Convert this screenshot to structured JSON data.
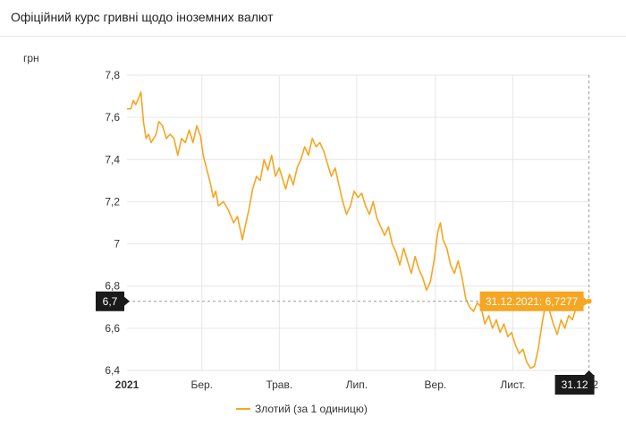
{
  "header": {
    "title": "Офіційний курс гривні щодо іноземних валют"
  },
  "chart_data": {
    "type": "line",
    "ylabel": "грн",
    "ylim": [
      6.4,
      7.8
    ],
    "yticks": [
      {
        "v": 7.8,
        "label": "7,8"
      },
      {
        "v": 7.6,
        "label": "7,6"
      },
      {
        "v": 7.4,
        "label": "7,4"
      },
      {
        "v": 7.2,
        "label": "7,2"
      },
      {
        "v": 7.0,
        "label": "7"
      },
      {
        "v": 6.8,
        "label": "6,8"
      },
      {
        "v": 6.6,
        "label": "6,6"
      },
      {
        "v": 6.4,
        "label": "6,4"
      }
    ],
    "xlim": [
      "2021-01-01",
      "2022-01-01"
    ],
    "xticks": [
      {
        "date": "2021-01-01",
        "label": "2021",
        "bold": true
      },
      {
        "date": "2021-03-01",
        "label": "Бер."
      },
      {
        "date": "2021-05-01",
        "label": "Трав."
      },
      {
        "date": "2021-07-01",
        "label": "Лип."
      },
      {
        "date": "2021-09-01",
        "label": "Вер."
      },
      {
        "date": "2021-11-01",
        "label": "Лист."
      },
      {
        "date": "2022-01-01",
        "label": "2"
      }
    ],
    "grid": true,
    "legend_position": "bottom-center",
    "crosshair": {
      "x_date": "2021-12-31",
      "x_label": "31.12",
      "y_value": 6.7277,
      "y_label": "6,7",
      "tooltip": "31.12.2021: 6,7277"
    },
    "colors": {
      "line": "#f5a623",
      "tooltip_bg": "#f5a623",
      "badge_bg": "#1a1a1a",
      "grid": "#e6e6e6"
    },
    "series": [
      {
        "name": "Злотий (за 1 одиницю)",
        "points": [
          [
            "2021-01-01",
            7.64
          ],
          [
            "2021-01-04",
            7.64
          ],
          [
            "2021-01-06",
            7.68
          ],
          [
            "2021-01-08",
            7.66
          ],
          [
            "2021-01-10",
            7.69
          ],
          [
            "2021-01-12",
            7.72
          ],
          [
            "2021-01-14",
            7.58
          ],
          [
            "2021-01-16",
            7.5
          ],
          [
            "2021-01-18",
            7.52
          ],
          [
            "2021-01-20",
            7.48
          ],
          [
            "2021-01-24",
            7.52
          ],
          [
            "2021-01-26",
            7.58
          ],
          [
            "2021-01-29",
            7.56
          ],
          [
            "2021-02-01",
            7.5
          ],
          [
            "2021-02-04",
            7.52
          ],
          [
            "2021-02-07",
            7.5
          ],
          [
            "2021-02-10",
            7.42
          ],
          [
            "2021-02-13",
            7.5
          ],
          [
            "2021-02-16",
            7.48
          ],
          [
            "2021-02-19",
            7.54
          ],
          [
            "2021-02-22",
            7.48
          ],
          [
            "2021-02-25",
            7.56
          ],
          [
            "2021-02-28",
            7.51
          ],
          [
            "2021-03-02",
            7.42
          ],
          [
            "2021-03-05",
            7.35
          ],
          [
            "2021-03-08",
            7.28
          ],
          [
            "2021-03-10",
            7.22
          ],
          [
            "2021-03-12",
            7.25
          ],
          [
            "2021-03-14",
            7.18
          ],
          [
            "2021-03-18",
            7.2
          ],
          [
            "2021-03-22",
            7.16
          ],
          [
            "2021-03-26",
            7.1
          ],
          [
            "2021-03-29",
            7.13
          ],
          [
            "2021-04-02",
            7.02
          ],
          [
            "2021-04-04",
            7.08
          ],
          [
            "2021-04-07",
            7.16
          ],
          [
            "2021-04-10",
            7.26
          ],
          [
            "2021-04-13",
            7.32
          ],
          [
            "2021-04-16",
            7.3
          ],
          [
            "2021-04-19",
            7.4
          ],
          [
            "2021-04-22",
            7.35
          ],
          [
            "2021-04-25",
            7.42
          ],
          [
            "2021-04-28",
            7.32
          ],
          [
            "2021-05-01",
            7.36
          ],
          [
            "2021-05-04",
            7.3
          ],
          [
            "2021-05-06",
            7.26
          ],
          [
            "2021-05-09",
            7.33
          ],
          [
            "2021-05-12",
            7.28
          ],
          [
            "2021-05-15",
            7.36
          ],
          [
            "2021-05-18",
            7.4
          ],
          [
            "2021-05-21",
            7.46
          ],
          [
            "2021-05-24",
            7.42
          ],
          [
            "2021-05-27",
            7.5
          ],
          [
            "2021-05-30",
            7.46
          ],
          [
            "2021-06-02",
            7.48
          ],
          [
            "2021-06-05",
            7.44
          ],
          [
            "2021-06-08",
            7.38
          ],
          [
            "2021-06-11",
            7.32
          ],
          [
            "2021-06-14",
            7.36
          ],
          [
            "2021-06-17",
            7.28
          ],
          [
            "2021-06-20",
            7.2
          ],
          [
            "2021-06-23",
            7.14
          ],
          [
            "2021-06-26",
            7.18
          ],
          [
            "2021-06-29",
            7.25
          ],
          [
            "2021-07-02",
            7.22
          ],
          [
            "2021-07-05",
            7.24
          ],
          [
            "2021-07-08",
            7.18
          ],
          [
            "2021-07-11",
            7.14
          ],
          [
            "2021-07-14",
            7.2
          ],
          [
            "2021-07-17",
            7.12
          ],
          [
            "2021-07-20",
            7.08
          ],
          [
            "2021-07-23",
            7.04
          ],
          [
            "2021-07-26",
            7.08
          ],
          [
            "2021-07-29",
            7.0
          ],
          [
            "2021-08-01",
            6.96
          ],
          [
            "2021-08-04",
            6.9
          ],
          [
            "2021-08-07",
            6.98
          ],
          [
            "2021-08-10",
            6.92
          ],
          [
            "2021-08-13",
            6.86
          ],
          [
            "2021-08-16",
            6.94
          ],
          [
            "2021-08-19",
            6.88
          ],
          [
            "2021-08-22",
            6.84
          ],
          [
            "2021-08-25",
            6.78
          ],
          [
            "2021-08-28",
            6.82
          ],
          [
            "2021-08-31",
            6.92
          ],
          [
            "2021-09-03",
            7.06
          ],
          [
            "2021-09-05",
            7.1
          ],
          [
            "2021-09-07",
            7.02
          ],
          [
            "2021-09-10",
            6.98
          ],
          [
            "2021-09-13",
            6.9
          ],
          [
            "2021-09-16",
            6.86
          ],
          [
            "2021-09-19",
            6.92
          ],
          [
            "2021-09-22",
            6.84
          ],
          [
            "2021-09-25",
            6.74
          ],
          [
            "2021-09-28",
            6.7
          ],
          [
            "2021-10-01",
            6.68
          ],
          [
            "2021-10-04",
            6.72
          ],
          [
            "2021-10-07",
            6.7
          ],
          [
            "2021-10-10",
            6.62
          ],
          [
            "2021-10-13",
            6.66
          ],
          [
            "2021-10-16",
            6.6
          ],
          [
            "2021-10-19",
            6.64
          ],
          [
            "2021-10-22",
            6.58
          ],
          [
            "2021-10-25",
            6.62
          ],
          [
            "2021-10-28",
            6.56
          ],
          [
            "2021-10-31",
            6.58
          ],
          [
            "2021-11-03",
            6.52
          ],
          [
            "2021-11-06",
            6.48
          ],
          [
            "2021-11-09",
            6.5
          ],
          [
            "2021-11-12",
            6.44
          ],
          [
            "2021-11-15",
            6.41
          ],
          [
            "2021-11-18",
            6.42
          ],
          [
            "2021-11-21",
            6.5
          ],
          [
            "2021-11-24",
            6.62
          ],
          [
            "2021-11-27",
            6.72
          ],
          [
            "2021-11-30",
            6.68
          ],
          [
            "2021-12-03",
            6.62
          ],
          [
            "2021-12-06",
            6.57
          ],
          [
            "2021-12-09",
            6.64
          ],
          [
            "2021-12-12",
            6.6
          ],
          [
            "2021-12-15",
            6.66
          ],
          [
            "2021-12-18",
            6.64
          ],
          [
            "2021-12-21",
            6.7
          ],
          [
            "2021-12-24",
            6.72
          ],
          [
            "2021-12-27",
            6.71
          ],
          [
            "2021-12-31",
            6.7277
          ]
        ]
      }
    ]
  }
}
